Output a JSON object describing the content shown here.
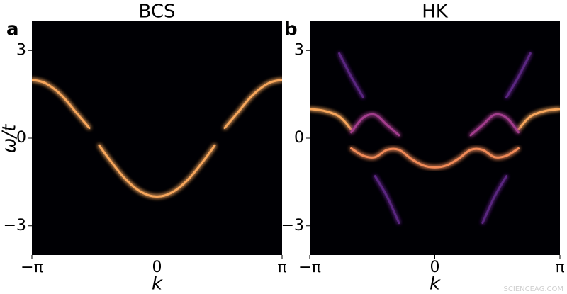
{
  "chart_data": [
    {
      "type": "line",
      "panel_label": "a",
      "title": "BCS",
      "xlabel": "k",
      "ylabel": "ω/t",
      "x": [
        -3.1416,
        -2.8,
        -2.4,
        -2.0,
        -1.7,
        -1.45,
        -1.2,
        -0.8,
        -0.4,
        0,
        0.4,
        0.8,
        1.2,
        1.45,
        1.7,
        2.0,
        2.4,
        2.8,
        3.1416
      ],
      "series": [
        {
          "color": "#f6a65c",
          "values": [
            2,
            1.88,
            1.47,
            0.83,
            0.35,
            null,
            null,
            null,
            null,
            null,
            null,
            null,
            null,
            null,
            0.35,
            0.83,
            1.47,
            1.88,
            2
          ]
        },
        {
          "color": "#f6a65c",
          "values": [
            null,
            null,
            null,
            null,
            null,
            -0.25,
            -0.72,
            -1.39,
            -1.84,
            -2,
            -1.84,
            -1.39,
            -0.72,
            -0.25,
            null,
            null,
            null,
            null,
            null
          ]
        }
      ],
      "xlim": [
        -3.1416,
        3.1416
      ],
      "ylim": [
        -4,
        4
      ],
      "xticks": [
        {
          "value": -3.1416,
          "label": "−π"
        },
        0,
        {
          "value": 3.1416,
          "label": "π"
        }
      ],
      "yticks": [
        3,
        0,
        {
          "value": -3,
          "label": "−3"
        }
      ]
    },
    {
      "type": "line",
      "panel_label": "b",
      "title": "HK",
      "xlabel": "k",
      "x": [
        -3.1416,
        -2.8,
        -2.4,
        -2.1,
        -1.8,
        -1.5,
        -1.2,
        -0.9,
        -0.6,
        -0.3,
        0,
        0.3,
        0.6,
        0.9,
        1.2,
        1.5,
        1.8,
        2.1,
        2.4,
        2.8,
        3.1416
      ],
      "series": [
        {
          "color": "#f6a65c",
          "values": [
            1,
            0.94,
            0.74,
            0.3,
            null,
            null,
            null,
            null,
            null,
            null,
            null,
            null,
            null,
            null,
            null,
            null,
            null,
            0.3,
            0.74,
            0.94,
            1
          ]
        },
        {
          "color": "#f08a58",
          "values": [
            null,
            null,
            null,
            -0.35,
            -0.6,
            -0.65,
            -0.4,
            -0.4,
            -0.7,
            -0.93,
            -1,
            -0.93,
            -0.7,
            -0.4,
            -0.4,
            -0.65,
            -0.6,
            -0.35,
            null,
            null,
            null
          ]
        },
        {
          "color": "#a13c8c",
          "values": [
            null,
            null,
            null,
            0.2,
            0.7,
            0.8,
            0.45,
            0.1,
            null,
            null,
            null,
            null,
            null,
            0.1,
            0.45,
            0.8,
            0.7,
            0.2,
            null,
            null,
            null
          ]
        },
        {
          "color": "#5a2580",
          "values": [
            null,
            null,
            2.9,
            2.1,
            1.4,
            null,
            null,
            null,
            null,
            null,
            null,
            null,
            null,
            null,
            null,
            null,
            1.4,
            2.1,
            2.9,
            null,
            null
          ]
        },
        {
          "color": "#5a2580",
          "values": [
            null,
            null,
            null,
            null,
            null,
            -1.3,
            -2.0,
            -2.9,
            null,
            null,
            null,
            null,
            null,
            null,
            -2.9,
            -2.0,
            -1.3,
            null,
            null,
            null,
            null
          ]
        }
      ],
      "xlim": [
        -3.1416,
        3.1416
      ],
      "ylim": [
        -4,
        4
      ],
      "xticks": [
        {
          "value": -3.1416,
          "label": "−π"
        },
        0,
        {
          "value": 3.1416,
          "label": "π"
        }
      ],
      "yticks": [
        3,
        0,
        {
          "value": -3,
          "label": "−3"
        }
      ]
    }
  ],
  "watermark": "SCIENCEAG.COM"
}
